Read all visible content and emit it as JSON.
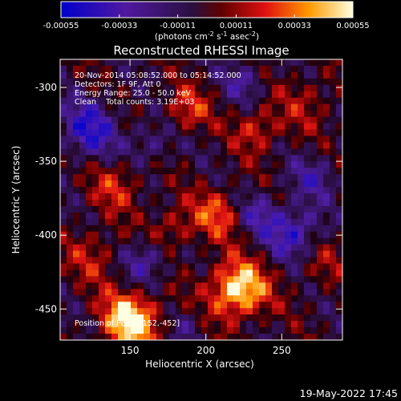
{
  "colorbar": {
    "ticks": [
      "-0.00055",
      "-0.00033",
      "-0.00011",
      "0.00011",
      "0.00033",
      "0.00055"
    ],
    "range": [
      -0.00055,
      0.00055
    ],
    "units_prefix": "(photons cm",
    "units_exp1": "-2",
    "units_mid1": " s",
    "units_exp2": "-1",
    "units_mid2": " asec",
    "units_exp3": "-2",
    "units_suffix": ")"
  },
  "chart_data": {
    "type": "heatmap",
    "title": "Reconstructed RHESSI Image",
    "xlabel": "Heliocentric X (arcsec)",
    "ylabel": "Heliocentric Y (arcsec)",
    "x_ticks": [
      "150",
      "200",
      "250"
    ],
    "y_ticks": [
      "-300",
      "-350",
      "-400",
      "-450"
    ],
    "xlim": [
      104,
      290
    ],
    "ylim": [
      -471,
      -281
    ],
    "colormap": "blue-purple-red-orange-yellow-white",
    "annotations": [
      "20-Nov-2014 05:08:52.000 to 05:14:52.000",
      "Detectors: 1F 9F, Att 0",
      "Energy Range: 25.0 - 50.0 keV",
      "Clean    Total counts: 3.19E+03",
      "Position of Peak: [152,-452]"
    ],
    "peak": [
      152,
      -452
    ]
  },
  "timestamp": "19-May-2022 17:45"
}
